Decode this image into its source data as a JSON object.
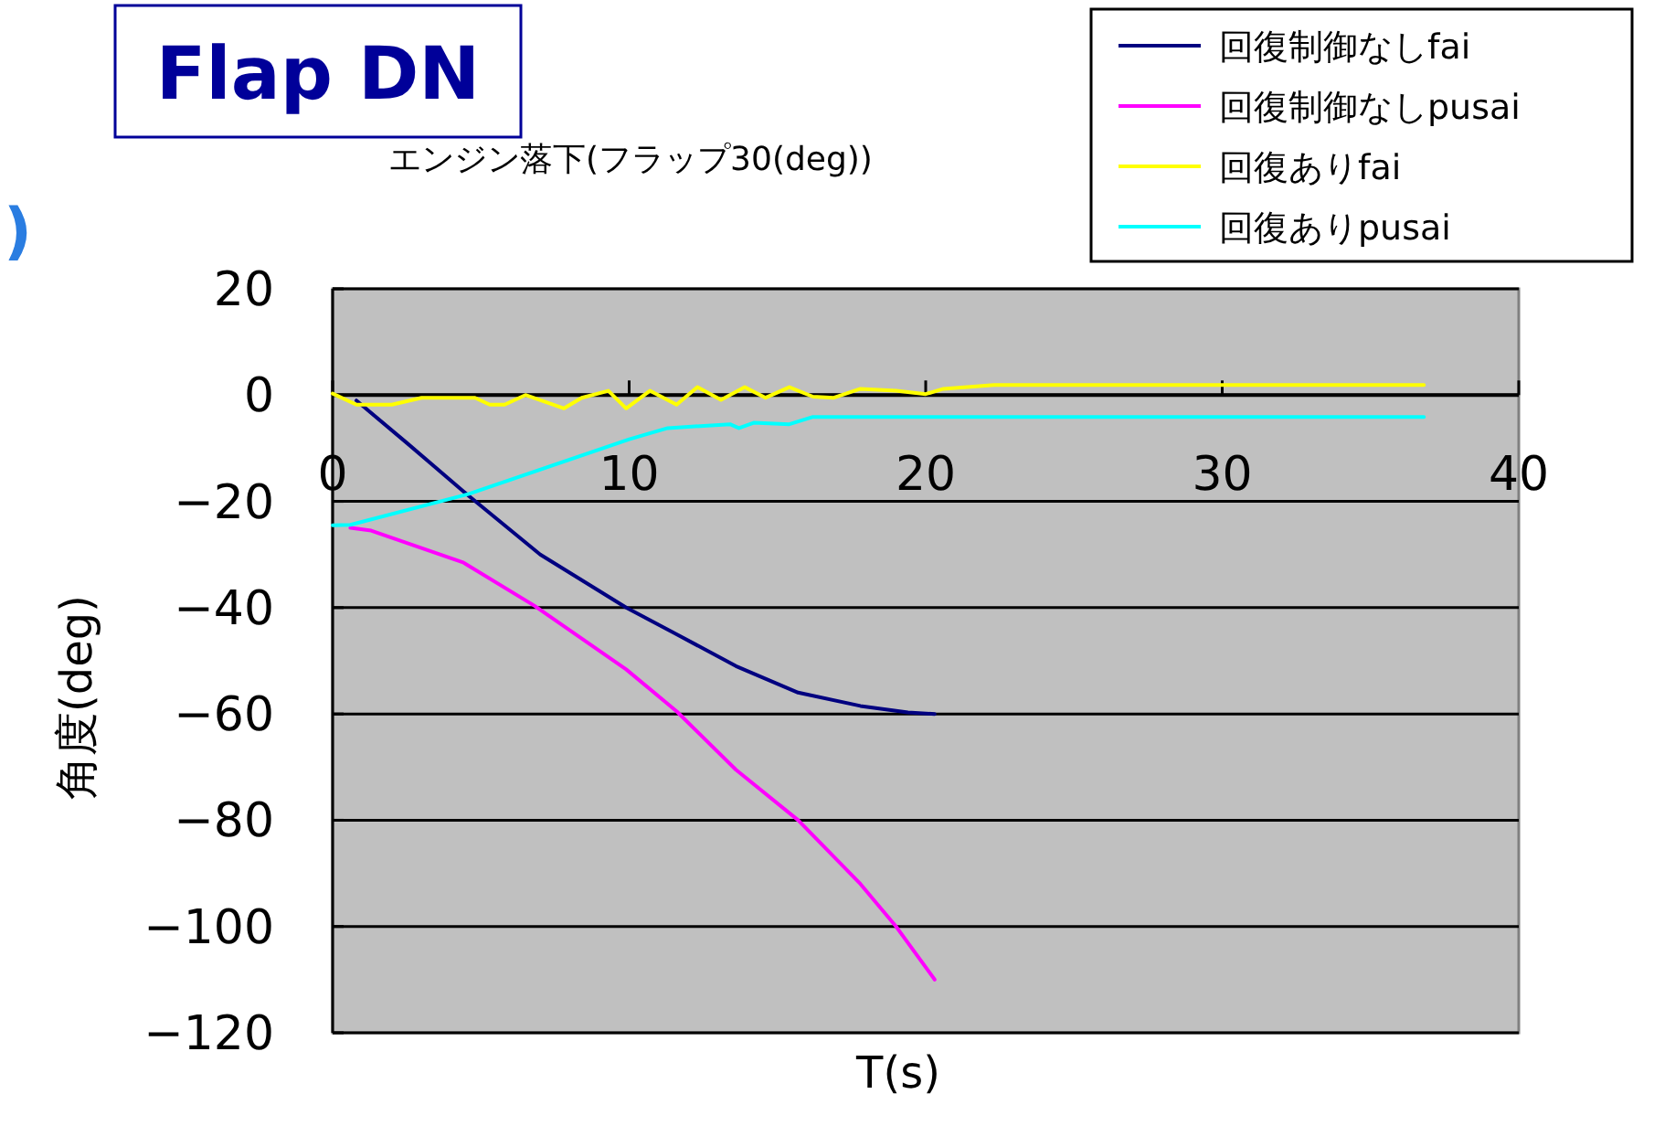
{
  "chart_data": {
    "type": "line",
    "title": "エンジン落下(フラップ30(deg))",
    "xlabel": "T(s)",
    "ylabel": "角度(deg)",
    "annotations": [
      "Flap DN",
      ")"
    ],
    "xlim": [
      0,
      40
    ],
    "xticks": [
      0,
      10,
      20,
      30,
      40
    ],
    "ylim": [
      -120,
      20
    ],
    "yticks": [
      20,
      0,
      -20,
      -40,
      -60,
      -80,
      -100,
      -120
    ],
    "grid": "y",
    "legend": "top right",
    "marker": "none",
    "line_style": "solid",
    "series": [
      {
        "name": "回復制御なしfai",
        "color": "#000080",
        "x": [
          0.8,
          2.5,
          4.6,
          7,
          9.9,
          11.6,
          13.6,
          15.7,
          17.8,
          19.4,
          20.3
        ],
        "values": [
          -1,
          -9,
          -19,
          -30,
          -40,
          -45,
          -51,
          -56,
          -58.5,
          -59.7,
          -60
        ]
      },
      {
        "name": "回復制御なしpusai",
        "color": "#ff00ff",
        "x": [
          0.6,
          1.3,
          4.4,
          6.8,
          9.9,
          11.6,
          13.6,
          15.7,
          17.8,
          19,
          20.3
        ],
        "values": [
          -25,
          -25.5,
          -31.5,
          -39.6,
          -51.6,
          -59.5,
          -70.5,
          -80,
          -92,
          -100,
          -110
        ]
      },
      {
        "name": "回復ありfai",
        "color": "#ffff00",
        "x": [
          0,
          0.8,
          2,
          3,
          4.8,
          5.3,
          5.8,
          6.5,
          7.8,
          8.4,
          9.3,
          9.9,
          10.7,
          11.6,
          12.3,
          13.1,
          13.9,
          14.6,
          15.4,
          16.2,
          16.9,
          17.8,
          19,
          20,
          20.6,
          22.3,
          36.8
        ],
        "values": [
          0.3,
          -1.8,
          -1.8,
          -0.5,
          -0.5,
          -1.8,
          -1.8,
          0,
          -2.5,
          -0.5,
          0.8,
          -2.5,
          0.8,
          -1.8,
          1.5,
          -0.9,
          1.5,
          -0.5,
          1.5,
          -0.3,
          -0.5,
          1.2,
          0.8,
          0.2,
          1.2,
          1.9,
          1.9
        ]
      },
      {
        "name": "回復ありpusai",
        "color": "#00ffff",
        "x": [
          0,
          0.6,
          4.6,
          10,
          11.3,
          13.4,
          13.7,
          14.2,
          15.4,
          16.2,
          36.8
        ],
        "values": [
          -24.5,
          -24.4,
          -18.6,
          -8.3,
          -6.2,
          -5.5,
          -6.2,
          -5.2,
          -5.5,
          -4.1,
          -4.1
        ]
      }
    ]
  }
}
